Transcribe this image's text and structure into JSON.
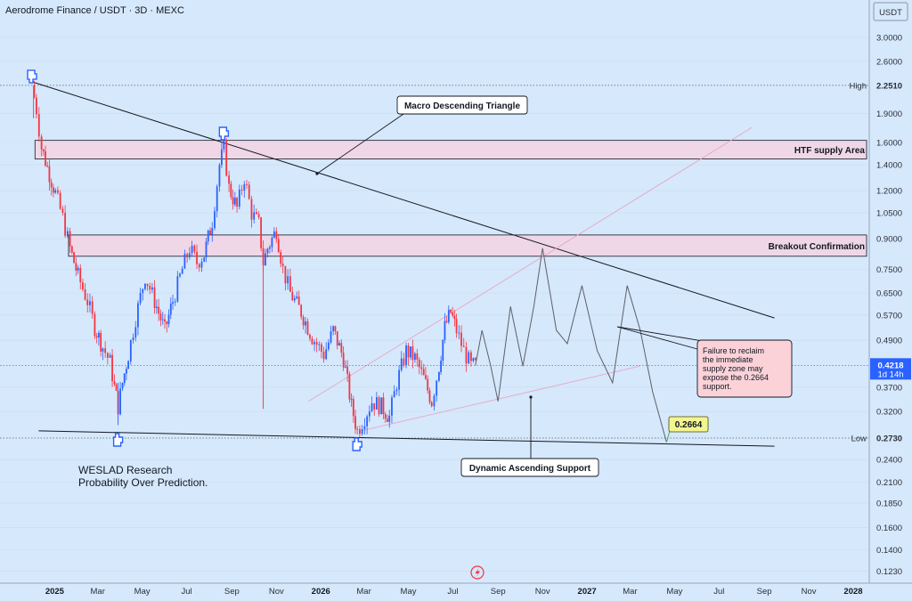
{
  "header": {
    "title": "Aerodrome Finance / USDT · 3D · MEXC",
    "currency": "USDT"
  },
  "colors": {
    "bg": "#d6e8fb",
    "up": "#2962ff",
    "down": "#f23645",
    "zone_fill": "#f3d3e3",
    "zone_stroke": "#131722",
    "line": "#131722",
    "projection": "#5d606b",
    "price_badge": "#2962ff",
    "note_fill": "#fad2d8",
    "target_fill": "#f3f58f"
  },
  "chart_data": {
    "type": "candlestick",
    "yscale": "log",
    "ylim": [
      0.115,
      3.45
    ],
    "y_ticks": [
      3.0,
      2.6,
      1.9,
      1.6,
      1.4,
      1.2,
      1.05,
      0.9,
      0.75,
      0.65,
      0.57,
      0.49,
      0.37,
      0.32,
      0.24,
      0.21,
      0.185,
      0.16,
      0.14,
      0.123
    ],
    "y_tick_labels": [
      "3.0000",
      "2.6000",
      "1.9000",
      "1.6000",
      "1.4000",
      "1.2000",
      "1.0500",
      "0.9000",
      "0.7500",
      "0.6500",
      "0.5700",
      "0.4900",
      "0.3700",
      "0.3200",
      "0.2400",
      "0.2100",
      "0.1850",
      "0.1600",
      "0.1400",
      "0.1230"
    ],
    "x_ticks": [
      {
        "label": "2025",
        "bold": true
      },
      {
        "label": "Mar"
      },
      {
        "label": "May"
      },
      {
        "label": "Jul"
      },
      {
        "label": "Sep"
      },
      {
        "label": "Nov"
      },
      {
        "label": "2026",
        "bold": true
      },
      {
        "label": "Mar"
      },
      {
        "label": "May"
      },
      {
        "label": "Jul"
      },
      {
        "label": "Sep"
      },
      {
        "label": "Nov"
      },
      {
        "label": "2027",
        "bold": true
      },
      {
        "label": "Mar"
      },
      {
        "label": "May"
      },
      {
        "label": "Jul"
      },
      {
        "label": "Sep"
      },
      {
        "label": "Nov"
      },
      {
        "label": "2028",
        "bold": true
      }
    ],
    "price_path": [
      [
        "2024-12-01",
        2.25
      ],
      [
        "2024-12-07",
        1.95
      ],
      [
        "2024-12-14",
        1.55
      ],
      [
        "2024-12-22",
        1.38
      ],
      [
        "2025-01-02",
        1.18
      ],
      [
        "2025-01-12",
        1.02
      ],
      [
        "2025-01-22",
        0.85
      ],
      [
        "2025-02-02",
        0.72
      ],
      [
        "2025-02-15",
        0.62
      ],
      [
        "2025-02-25",
        0.53
      ],
      [
        "2025-03-08",
        0.47
      ],
      [
        "2025-03-18",
        0.43
      ],
      [
        "2025-03-24",
        0.37
      ],
      [
        "2025-03-29",
        0.33
      ],
      [
        "2025-04-04",
        0.38
      ],
      [
        "2025-04-12",
        0.45
      ],
      [
        "2025-04-22",
        0.56
      ],
      [
        "2025-05-05",
        0.72
      ],
      [
        "2025-05-18",
        0.62
      ],
      [
        "2025-06-01",
        0.52
      ],
      [
        "2025-06-12",
        0.62
      ],
      [
        "2025-06-25",
        0.75
      ],
      [
        "2025-07-05",
        0.85
      ],
      [
        "2025-07-15",
        0.78
      ],
      [
        "2025-07-25",
        0.82
      ],
      [
        "2025-08-05",
        1.0
      ],
      [
        "2025-08-15",
        1.4
      ],
      [
        "2025-08-21",
        1.55
      ],
      [
        "2025-08-28",
        1.22
      ],
      [
        "2025-09-08",
        1.08
      ],
      [
        "2025-09-18",
        1.3
      ],
      [
        "2025-09-28",
        1.05
      ],
      [
        "2025-10-08",
        0.98
      ],
      [
        "2025-10-14",
        0.78
      ],
      [
        "2025-10-20",
        0.85
      ],
      [
        "2025-11-01",
        0.95
      ],
      [
        "2025-11-10",
        0.75
      ],
      [
        "2025-11-20",
        0.65
      ],
      [
        "2025-12-05",
        0.58
      ],
      [
        "2025-12-20",
        0.5
      ],
      [
        "2026-01-05",
        0.45
      ],
      [
        "2026-01-18",
        0.52
      ],
      [
        "2026-02-01",
        0.44
      ],
      [
        "2026-02-12",
        0.33
      ],
      [
        "2026-02-20",
        0.285
      ],
      [
        "2026-03-02",
        0.31
      ],
      [
        "2026-03-12",
        0.34
      ],
      [
        "2026-03-25",
        0.33
      ],
      [
        "2026-04-05",
        0.31
      ],
      [
        "2026-04-15",
        0.38
      ],
      [
        "2026-04-28",
        0.46
      ],
      [
        "2026-05-10",
        0.44
      ],
      [
        "2026-05-22",
        0.39
      ],
      [
        "2026-06-02",
        0.34
      ],
      [
        "2026-06-12",
        0.42
      ],
      [
        "2026-06-20",
        0.53
      ],
      [
        "2026-06-28",
        0.58
      ],
      [
        "2026-07-06",
        0.52
      ],
      [
        "2026-07-16",
        0.46
      ],
      [
        "2026-07-26",
        0.42
      ],
      [
        "2026-08-01",
        0.4218
      ]
    ],
    "projection_path": [
      [
        "2026-08-01",
        0.4218
      ],
      [
        "2026-08-10",
        0.52
      ],
      [
        "2026-08-22",
        0.42
      ],
      [
        "2026-09-01",
        0.34
      ],
      [
        "2026-09-18",
        0.6
      ],
      [
        "2026-10-05",
        0.42
      ],
      [
        "2026-10-20",
        0.6
      ],
      [
        "2026-11-01",
        0.85
      ],
      [
        "2026-11-20",
        0.52
      ],
      [
        "2026-12-05",
        0.48
      ],
      [
        "2026-12-25",
        0.68
      ],
      [
        "2027-01-15",
        0.46
      ],
      [
        "2027-02-05",
        0.38
      ],
      [
        "2027-02-25",
        0.68
      ],
      [
        "2027-03-15",
        0.52
      ],
      [
        "2027-04-01",
        0.36
      ],
      [
        "2027-04-20",
        0.2664
      ]
    ],
    "trendlines": [
      {
        "name": "descending",
        "from": [
          "2024-12-01",
          2.3
        ],
        "to": [
          "2027-09-15",
          0.56
        ]
      },
      {
        "name": "flat-support",
        "from": [
          "2024-12-10",
          0.285
        ],
        "to": [
          "2027-09-15",
          0.26
        ]
      },
      {
        "name": "ascending",
        "from": [
          "2026-02-25",
          0.285
        ],
        "to": [
          "2027-03-15",
          0.42
        ]
      },
      {
        "name": "ascending-upper",
        "from": [
          "2025-12-15",
          0.34
        ],
        "to": [
          "2027-08-15",
          1.75
        ]
      }
    ],
    "zones": [
      {
        "label": "HTF supply Area",
        "from_price": 1.45,
        "to_price": 1.62,
        "x_start": "2024-12-05"
      },
      {
        "label": "Breakout Confirmation",
        "from_price": 0.81,
        "to_price": 0.92,
        "x_start": "2025-01-20"
      }
    ],
    "levels": [
      {
        "label": "High",
        "value": 2.251,
        "value_text": "2.2510"
      },
      {
        "label": "Low",
        "value": 0.273,
        "value_text": "0.2730"
      }
    ],
    "current_price": {
      "value": 0.4218,
      "value_text": "0.4218",
      "countdown": "1d 14h"
    },
    "annotations": [
      {
        "text": "Macro Descending Triangle"
      },
      {
        "text": "Dynamic Ascending Support"
      }
    ],
    "target": {
      "value_text": "0.2664"
    },
    "note": {
      "lines": [
        "Failure to reclaim",
        "the immediate",
        "supply zone may",
        "expose the 0.2664",
        "support."
      ]
    }
  },
  "watermark": {
    "line1": "WESLAD Research",
    "line2": "Probability Over Prediction."
  }
}
